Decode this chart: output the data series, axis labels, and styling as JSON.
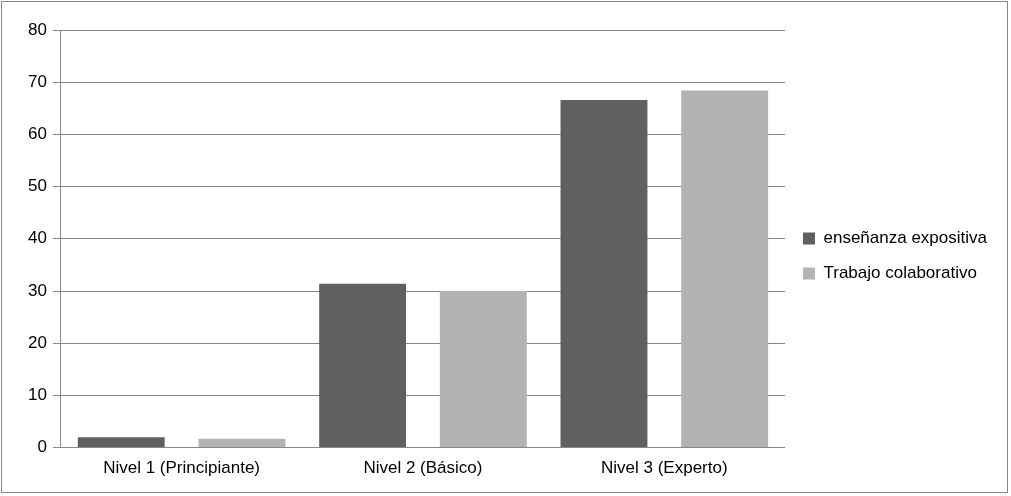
{
  "chart_data": {
    "type": "bar",
    "categories": [
      "Nivel 1 (Principiante)",
      "Nivel 2 (Básico)",
      "Nivel 3 (Experto)"
    ],
    "series": [
      {
        "name": "enseñanza expositiva",
        "color": "#606060",
        "values": [
          2.0,
          31.4,
          66.6
        ]
      },
      {
        "name": "Trabajo colaborativo",
        "color": "#b3b3b3",
        "values": [
          1.7,
          30.0,
          68.4
        ]
      }
    ],
    "ylim": [
      0,
      80
    ],
    "yticks": [
      0,
      10,
      20,
      30,
      40,
      50,
      60,
      70,
      80
    ],
    "grid": "y",
    "legend": "right"
  }
}
